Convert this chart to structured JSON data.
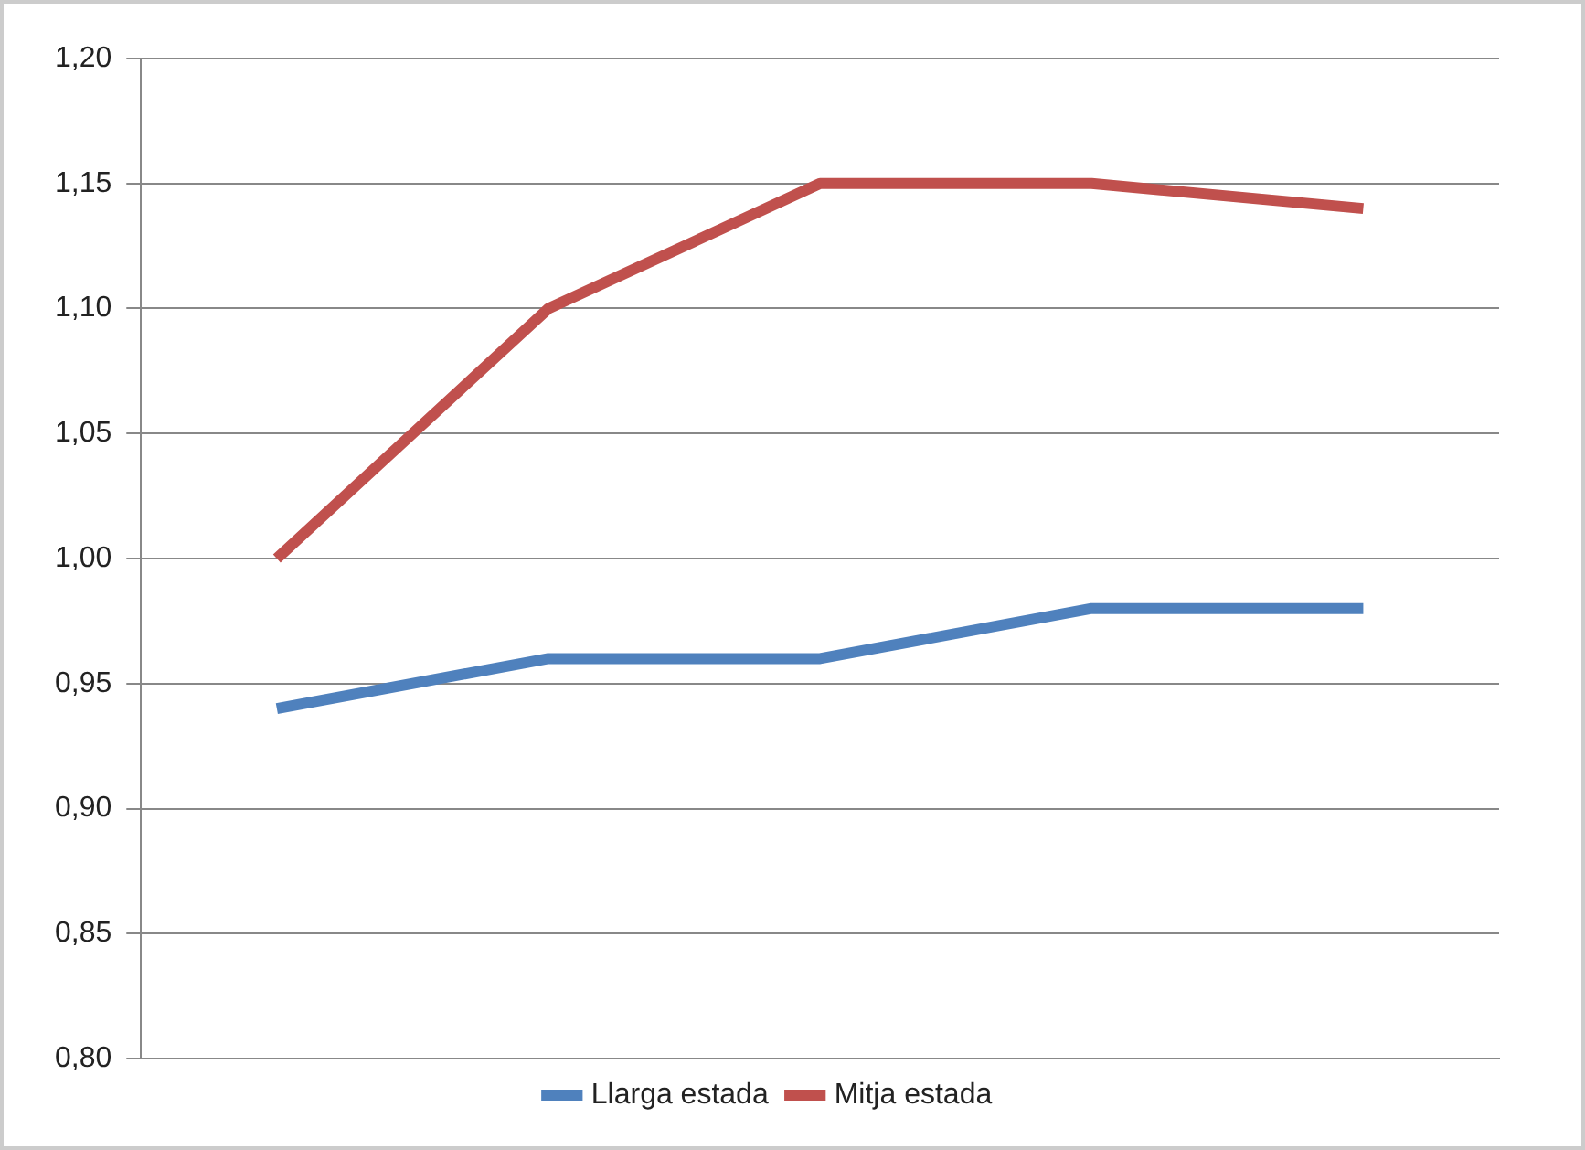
{
  "chart_data": {
    "type": "line",
    "categories": [
      null,
      null,
      null,
      null,
      null
    ],
    "series": [
      {
        "name": "Llarga estada",
        "color": "#4f81bd",
        "values": [
          0.94,
          0.96,
          0.96,
          0.98,
          0.98
        ]
      },
      {
        "name": "Mitja estada",
        "color": "#c0504d",
        "values": [
          1.0,
          1.1,
          1.15,
          1.15,
          1.14
        ]
      }
    ],
    "ylim": [
      0.8,
      1.2
    ],
    "yticks": [
      {
        "value": 0.8,
        "label": "0,80"
      },
      {
        "value": 0.85,
        "label": "0,85"
      },
      {
        "value": 0.9,
        "label": "0,90"
      },
      {
        "value": 0.95,
        "label": "0,95"
      },
      {
        "value": 1.0,
        "label": "1,00"
      },
      {
        "value": 1.05,
        "label": "1,05"
      },
      {
        "value": 1.1,
        "label": "1,10"
      },
      {
        "value": 1.15,
        "label": "1,15"
      },
      {
        "value": 1.2,
        "label": "1,20"
      }
    ],
    "grid": "y",
    "legend": "bottom",
    "tick_labels": "y",
    "marker": "none",
    "line_style": "solid"
  }
}
